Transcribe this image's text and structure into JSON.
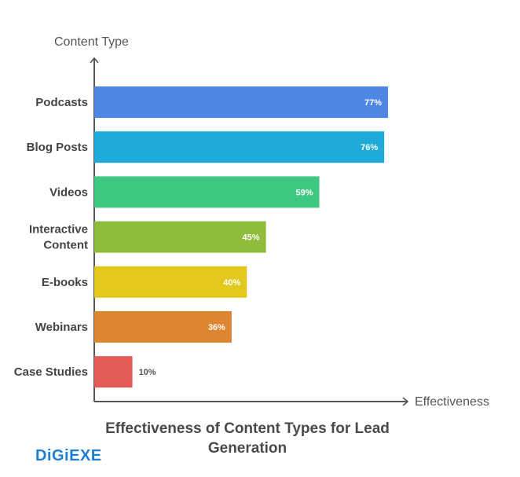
{
  "chart_data": {
    "type": "bar",
    "orientation": "horizontal",
    "title": "Effectiveness of Content Types for Lead Generation",
    "xlabel": "Effectiveness",
    "ylabel": "Content Type",
    "categories": [
      "Podcasts",
      "Blog Posts",
      "Videos",
      "Interactive Content",
      "E-books",
      "Webinars",
      "Case Studies"
    ],
    "values": [
      77,
      76,
      59,
      45,
      40,
      36,
      10
    ],
    "data_labels": [
      "77%",
      "76%",
      "59%",
      "45%",
      "40%",
      "36%",
      "10%"
    ],
    "unit": "%",
    "xlim": [
      0,
      82
    ],
    "grid": false,
    "colors": [
      "#4e86e4",
      "#1eabd9",
      "#3ec882",
      "#8fbc3a",
      "#e2c91c",
      "#e0852f",
      "#e45a56"
    ]
  },
  "brand": {
    "logo_text": "DiGiEXE",
    "color": "#1e7fd6"
  }
}
